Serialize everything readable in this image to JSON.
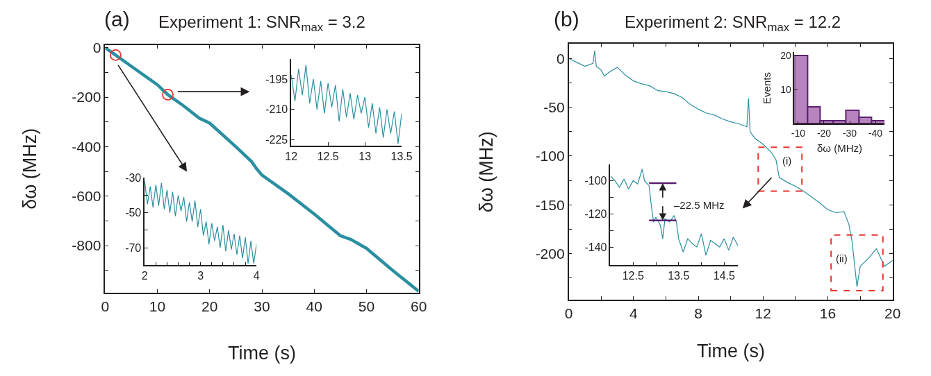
{
  "chart_data": [
    {
      "type": "line",
      "title": "Experiment 1: SNR$_{max}$ = 3.2",
      "xlabel": "Time (s)",
      "ylabel": "δω (MHz)",
      "annotations": [
        "(a)"
      ],
      "xlim": [
        0,
        60
      ],
      "ylim": [
        -990,
        10
      ],
      "xticks": [
        0,
        10,
        20,
        30,
        40,
        50,
        60
      ],
      "yticks": [
        0,
        {
          "value": -100,
          "label": null
        },
        -200,
        {
          "value": -300,
          "label": null
        },
        -400,
        {
          "value": -500,
          "label": null
        },
        -600,
        {
          "value": -700,
          "label": null
        },
        -800,
        {
          "value": -900,
          "label": null
        }
      ],
      "series": [
        {
          "color": "#2a8fa0",
          "x": [
            0,
            2,
            5,
            10,
            12,
            15,
            18,
            20,
            25,
            28,
            29,
            30,
            35,
            40,
            41,
            45,
            47,
            50,
            55,
            60
          ],
          "values": [
            0,
            -30,
            -75,
            -150,
            -190,
            -235,
            -285,
            -305,
            -400,
            -460,
            -490,
            -515,
            -590,
            -672,
            -690,
            -760,
            -775,
            -811,
            -900,
            -985
          ]
        },
        {
          "type": "scatter",
          "marker": "circle",
          "color": "#e8352e",
          "x": [
            2,
            12
          ],
          "values": [
            -30,
            -190
          ]
        }
      ]
    },
    {
      "type": "line",
      "xlim": [
        2,
        4
      ],
      "ylim": [
        -80,
        -30
      ],
      "xticks": [
        2,
        {
          "value": 2.2,
          "label": null
        },
        {
          "value": 2.4,
          "label": null
        },
        {
          "value": 2.6,
          "label": null
        },
        {
          "value": 2.8,
          "label": null
        },
        3,
        {
          "value": 3.2,
          "label": null
        },
        {
          "value": 3.4,
          "label": null
        },
        {
          "value": 3.6,
          "label": null
        },
        {
          "value": 3.8,
          "label": null
        },
        4
      ],
      "yticks": [
        -30,
        {
          "value": -40,
          "label": null
        },
        -50,
        {
          "value": -60,
          "label": null
        },
        -70
      ],
      "series": [
        {
          "color": "#2a8fa0",
          "x": [
            2.0,
            2.05,
            2.1,
            2.15,
            2.2,
            2.25,
            2.3,
            2.35,
            2.4,
            2.45,
            2.5,
            2.55,
            2.6,
            2.65,
            2.7,
            2.75,
            2.8,
            2.85,
            2.9,
            2.95,
            3.0,
            3.05,
            3.1,
            3.15,
            3.2,
            3.25,
            3.3,
            3.35,
            3.4,
            3.45,
            3.5,
            3.55,
            3.6,
            3.65,
            3.7,
            3.75,
            3.8,
            3.85,
            3.9,
            3.95,
            4.0
          ],
          "values": [
            -32,
            -45,
            -35,
            -47,
            -34,
            -46,
            -33,
            -48,
            -37,
            -50,
            -38,
            -52,
            -40,
            -49,
            -41,
            -55,
            -44,
            -55,
            -43,
            -58,
            -48,
            -63,
            -55,
            -68,
            -56,
            -66,
            -58,
            -70,
            -57,
            -72,
            -60,
            -71,
            -62,
            -74,
            -63,
            -76,
            -64,
            -79,
            -66,
            -79,
            -68
          ]
        }
      ]
    },
    {
      "type": "line",
      "xlim": [
        12,
        13.5
      ],
      "ylim": [
        -228,
        -185
      ],
      "xticks": [
        12,
        12.5,
        13,
        13.5
      ],
      "yticks": [
        -195,
        -210,
        -225
      ],
      "series": [
        {
          "color": "#2a8fa0",
          "x": [
            12.0,
            12.05,
            12.1,
            12.15,
            12.2,
            12.25,
            12.3,
            12.35,
            12.4,
            12.45,
            12.5,
            12.55,
            12.6,
            12.65,
            12.7,
            12.75,
            12.8,
            12.85,
            12.9,
            12.95,
            13.0,
            13.05,
            13.1,
            13.15,
            13.2,
            13.25,
            13.3,
            13.35,
            13.4,
            13.45,
            13.5
          ],
          "values": [
            -193,
            -206,
            -190,
            -203,
            -188,
            -207,
            -195,
            -210,
            -196,
            -212,
            -197,
            -209,
            -198,
            -216,
            -200,
            -214,
            -202,
            -215,
            -203,
            -212,
            -204,
            -219,
            -207,
            -222,
            -209,
            -224,
            -210,
            -222,
            -211,
            -227,
            -212
          ]
        }
      ]
    },
    {
      "type": "line",
      "title": "Experiment 2: SNR$_{max}$ = 12.2",
      "xlabel": "Time (s)",
      "ylabel": "δω (MHz)",
      "annotations": [
        "(b)",
        "(i)",
        "(ii)"
      ],
      "xlim": [
        0,
        20
      ],
      "ylim": [
        -247,
        15
      ],
      "xticks": [
        0,
        {
          "value": 2,
          "label": null
        },
        4,
        {
          "value": 6,
          "label": null
        },
        8,
        {
          "value": 10,
          "label": null
        },
        12,
        {
          "value": 14,
          "label": null
        },
        16,
        {
          "value": 18,
          "label": null
        },
        20
      ],
      "yticks": [
        0,
        {
          "value": -25,
          "label": null
        },
        -50,
        {
          "value": -75,
          "label": null
        },
        -100,
        {
          "value": -125,
          "label": null
        },
        -150,
        {
          "value": -175,
          "label": null
        },
        -200,
        {
          "value": -225,
          "label": null
        }
      ],
      "series": [
        {
          "color": "#2a8fa0",
          "x": [
            0,
            0.5,
            1,
            1.5,
            1.6,
            1.7,
            2,
            2.2,
            2.5,
            3,
            3.5,
            4,
            4.5,
            5,
            5.5,
            6,
            6.5,
            7,
            7.5,
            8,
            8.5,
            9,
            9.5,
            10,
            10.5,
            11,
            11.1,
            11.2,
            11.5,
            12,
            12.5,
            12.8,
            13,
            13.5,
            14,
            14.5,
            15,
            15.5,
            16,
            16.5,
            17,
            17.3,
            17.5,
            17.8,
            18,
            18.5,
            19,
            19.5,
            20
          ],
          "values": [
            0,
            -4,
            -8,
            -5,
            8,
            -8,
            -12,
            -18,
            -14,
            -9,
            -17,
            -23,
            -26,
            -28,
            -33,
            -34,
            -36,
            -40,
            -47,
            -52,
            -56,
            -58,
            -62,
            -65,
            -67,
            -70,
            -41,
            -75,
            -82,
            -88,
            -96,
            -104,
            -122,
            -127,
            -131,
            -136,
            -142,
            -148,
            -155,
            -158,
            -157,
            -170,
            -188,
            -234,
            -213,
            -205,
            -195,
            -213,
            -207
          ]
        }
      ]
    },
    {
      "type": "line",
      "annotations": [
        {
          "text": "–22.5 MHz",
          "x": 13.15,
          "y": -101.5
        }
      ],
      "xlim": [
        12,
        14.8
      ],
      "ylim": [
        -151,
        -90
      ],
      "xticks": [
        12.5,
        {
          "value": 13,
          "label": null
        },
        13.5,
        {
          "value": 14,
          "label": null
        },
        14.5
      ],
      "yticks": [
        -100,
        {
          "value": -110,
          "label": null
        },
        -120,
        {
          "value": -130,
          "label": null
        },
        -140
      ],
      "series": [
        {
          "color": "#2a8fa0",
          "x": [
            12.0,
            12.1,
            12.2,
            12.3,
            12.4,
            12.5,
            12.6,
            12.7,
            12.75,
            12.85,
            12.9,
            12.95,
            13.0,
            13.1,
            13.15,
            13.2,
            13.3,
            13.4,
            13.45,
            13.5,
            13.6,
            13.7,
            13.8,
            13.9,
            14.0,
            14.1,
            14.2,
            14.3,
            14.4,
            14.5,
            14.6,
            14.7,
            14.8
          ],
          "values": [
            -97,
            -100,
            -104,
            -99,
            -105,
            -100,
            -102,
            -93,
            -100,
            -103,
            -115,
            -125,
            -122,
            -127,
            -135,
            -123,
            -125,
            -121,
            -125,
            -135,
            -143,
            -135,
            -138,
            -140,
            -132,
            -145,
            -136,
            -138,
            -140,
            -135,
            -142,
            -134,
            -139
          ]
        },
        {
          "color": "#5a1f6e",
          "x": [
            12.85,
            13.45
          ],
          "values": [
            -101.5,
            -101.5
          ]
        },
        {
          "color": "#5a1f6e",
          "x": [
            12.85,
            13.45
          ],
          "values": [
            -124,
            -124
          ]
        }
      ]
    },
    {
      "type": "histogram",
      "xlabel": "δω (MHz)",
      "ylabel": "Events",
      "color": "#b784be",
      "bins": [
        -8.5,
        -13.5,
        -18.5,
        -23.5,
        -28.5,
        -33.5,
        -38.5,
        -43.5
      ],
      "values": [
        20,
        5,
        1,
        1,
        4,
        2,
        1
      ],
      "xlim": [
        -8.5,
        -43.5
      ],
      "ylim": [
        0,
        21
      ],
      "xticks": [
        -10,
        -20,
        -30,
        -40
      ],
      "yticks": [
        10,
        20
      ]
    }
  ]
}
